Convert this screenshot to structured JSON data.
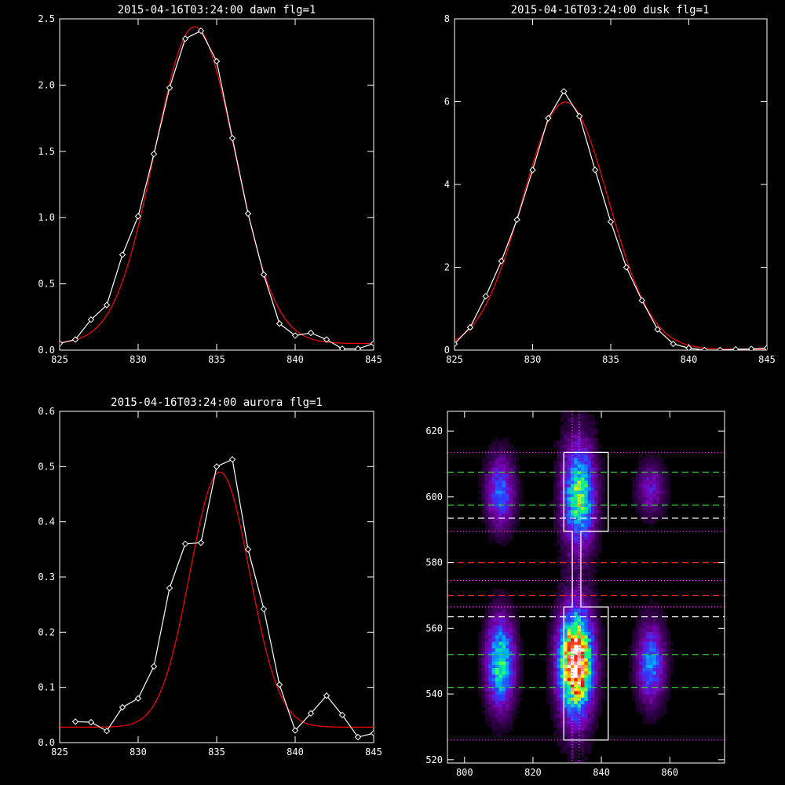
{
  "chart_data": [
    {
      "type": "line",
      "title": "2015-04-16T03:24:00 dawn flg=1",
      "xlim": [
        825,
        845
      ],
      "ylim": [
        0,
        2.5
      ],
      "xticks": [
        "825",
        "830",
        "835",
        "840",
        "845"
      ],
      "yticks": [
        "0.0",
        "0.5",
        "1.0",
        "1.5",
        "2.0",
        "2.5"
      ],
      "series": [
        {
          "kind": "measured",
          "color": "#ffffff",
          "marker": "diamond",
          "x": [
            825,
            826,
            827,
            828,
            829,
            830,
            831,
            832,
            833,
            834,
            835,
            836,
            837,
            838,
            839,
            840,
            841,
            842,
            843,
            844,
            845
          ],
          "y": [
            0.05,
            0.08,
            0.23,
            0.34,
            0.72,
            1.01,
            1.48,
            1.98,
            2.35,
            2.41,
            2.18,
            1.6,
            1.03,
            0.57,
            0.2,
            0.11,
            0.13,
            0.08,
            0.01,
            0.01,
            0.05
          ]
        },
        {
          "kind": "gaussian-fit",
          "color": "#ff0000",
          "amplitude": 2.39,
          "center": 833.6,
          "sigma": 2.55,
          "offset": 0.05
        }
      ]
    },
    {
      "type": "line",
      "title": "2015-04-16T03:24:00 dusk flg=1",
      "xlim": [
        825,
        845
      ],
      "ylim": [
        0,
        8
      ],
      "xticks": [
        "825",
        "830",
        "835",
        "840",
        "845"
      ],
      "yticks": [
        "0",
        "2",
        "4",
        "6",
        "8"
      ],
      "series": [
        {
          "kind": "measured",
          "color": "#ffffff",
          "marker": "diamond",
          "x": [
            825,
            826,
            827,
            828,
            829,
            830,
            831,
            832,
            833,
            834,
            835,
            836,
            837,
            838,
            839,
            840,
            841,
            842,
            843,
            844,
            845
          ],
          "y": [
            0.15,
            0.55,
            1.3,
            2.15,
            3.15,
            4.35,
            5.6,
            6.25,
            5.65,
            4.35,
            3.1,
            2.0,
            1.2,
            0.5,
            0.15,
            0.05,
            0.0,
            0.0,
            0.02,
            0.03,
            0.05
          ]
        },
        {
          "kind": "gaussian-fit",
          "color": "#ff0000",
          "amplitude": 5.97,
          "center": 832.1,
          "sigma": 2.75,
          "offset": 0.02
        }
      ]
    },
    {
      "type": "line",
      "title": "2015-04-16T03:24:00 aurora flg=1",
      "xlim": [
        825,
        845
      ],
      "ylim": [
        0,
        0.6
      ],
      "xticks": [
        "825",
        "830",
        "835",
        "840",
        "845"
      ],
      "yticks": [
        "0.0",
        "0.1",
        "0.2",
        "0.3",
        "0.4",
        "0.5",
        "0.6"
      ],
      "series": [
        {
          "kind": "measured",
          "color": "#ffffff",
          "marker": "diamond",
          "x": [
            826,
            827,
            828,
            829,
            830,
            831,
            832,
            833,
            834,
            835,
            836,
            837,
            838,
            839,
            840,
            841,
            842,
            843,
            844,
            845
          ],
          "y": [
            0.038,
            0.037,
            0.021,
            0.064,
            0.08,
            0.138,
            0.28,
            0.36,
            0.362,
            0.5,
            0.513,
            0.35,
            0.242,
            0.105,
            0.022,
            0.053,
            0.085,
            0.05,
            0.01,
            0.017
          ]
        },
        {
          "kind": "gaussian-fit",
          "color": "#ff0000",
          "amplitude": 0.462,
          "center": 835.2,
          "sigma": 1.9,
          "offset": 0.028
        }
      ]
    },
    {
      "type": "heatmap",
      "title": "",
      "xlim": [
        795,
        876
      ],
      "ylim": [
        519,
        626
      ],
      "xticks": [
        "800",
        "820",
        "840",
        "860"
      ],
      "yticks": [
        "520",
        "540",
        "560",
        "580",
        "600",
        "620"
      ],
      "colormap": [
        "#000000",
        "#3a0055",
        "#7a00b4",
        "#2e3cff",
        "#00aaff",
        "#00ff80",
        "#ffff00",
        "#ff0000",
        "#ffffff"
      ],
      "blobs": [
        {
          "x": 810,
          "y": 549,
          "sx": 3,
          "sy": 10,
          "peak": 0.62
        },
        {
          "x": 832,
          "y": 549,
          "sx": 3.6,
          "sy": 11,
          "peak": 1.0
        },
        {
          "x": 854,
          "y": 549,
          "sx": 3,
          "sy": 9,
          "peak": 0.45
        },
        {
          "x": 810,
          "y": 601,
          "sx": 3,
          "sy": 8,
          "peak": 0.42
        },
        {
          "x": 833,
          "y": 600,
          "sx": 3.4,
          "sy": 11,
          "peak": 0.62
        },
        {
          "x": 854,
          "y": 602,
          "sx": 3,
          "sy": 6,
          "peak": 0.28
        }
      ],
      "hlines": [
        {
          "y": 613.5,
          "color": "#ff33ff",
          "style": "dotted"
        },
        {
          "y": 607.5,
          "color": "#33dd33",
          "style": "dashed"
        },
        {
          "y": 597.5,
          "color": "#33dd33",
          "style": "dashed"
        },
        {
          "y": 593.5,
          "color": "#ffffff",
          "style": "dashed"
        },
        {
          "y": 589.5,
          "color": "#ff33ff",
          "style": "dotted"
        },
        {
          "y": 580,
          "color": "#ff2020",
          "style": "dashed"
        },
        {
          "y": 574.5,
          "color": "#ff33ff",
          "style": "dotted"
        },
        {
          "y": 570,
          "color": "#ff2020",
          "style": "dashed"
        },
        {
          "y": 566.5,
          "color": "#ff33ff",
          "style": "dotted"
        },
        {
          "y": 563.5,
          "color": "#ffffff",
          "style": "dashed"
        },
        {
          "y": 552,
          "color": "#33dd33",
          "style": "dashed"
        },
        {
          "y": 542,
          "color": "#33dd33",
          "style": "dashed"
        },
        {
          "y": 526,
          "color": "#ff33ff",
          "style": "dotted"
        }
      ],
      "vlines": [
        {
          "x": 831.5,
          "color": "#ff33ff",
          "style": "dotted"
        },
        {
          "x": 833.5,
          "color": "#ff33ff",
          "style": "dotted"
        }
      ],
      "outline": [
        [
          829,
          613.5
        ],
        [
          842,
          613.5
        ],
        [
          842,
          589.5
        ],
        [
          834,
          589.5
        ],
        [
          834,
          566.5
        ],
        [
          842,
          566.5
        ],
        [
          842,
          526
        ],
        [
          829,
          526
        ],
        [
          829,
          566.5
        ],
        [
          831.5,
          566.5
        ],
        [
          831.5,
          589.5
        ],
        [
          829,
          589.5
        ],
        [
          829,
          613.5
        ]
      ]
    }
  ]
}
